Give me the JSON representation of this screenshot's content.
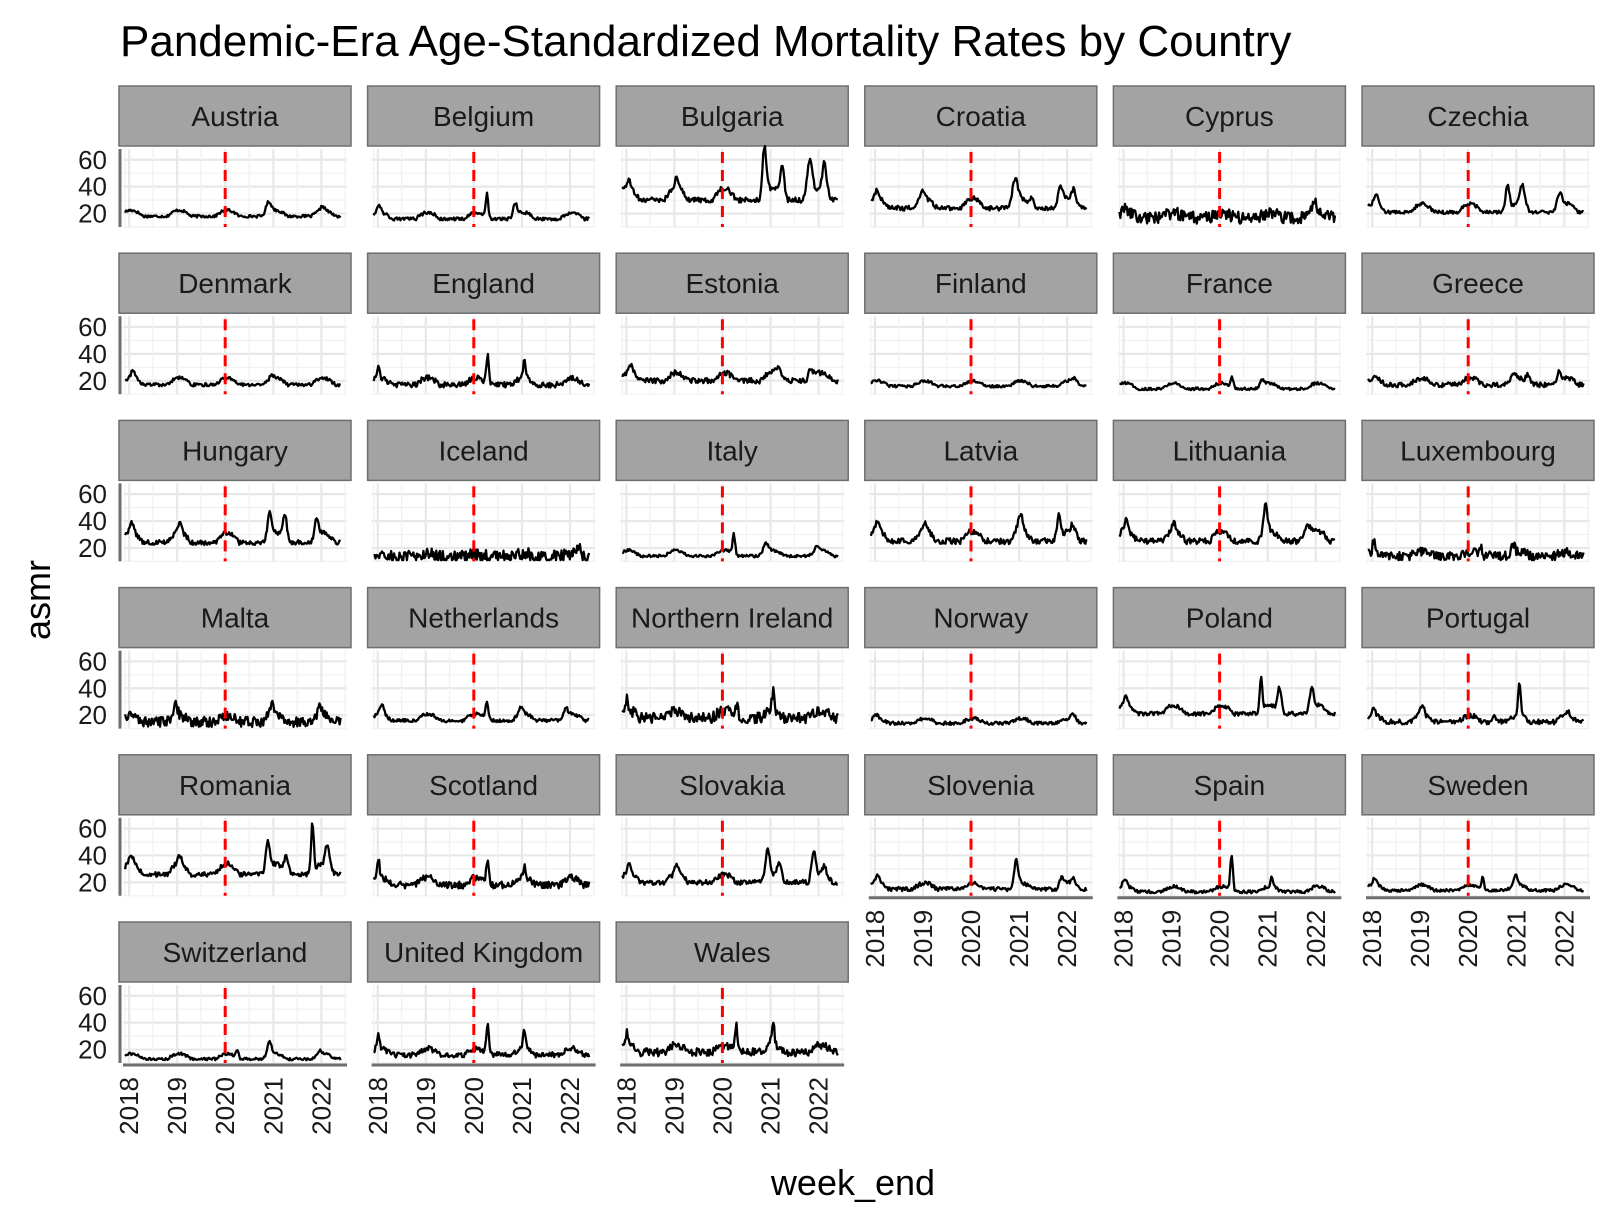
{
  "chart_data": {
    "type": "line",
    "title": "Pandemic-Era Age-Standardized Mortality Rates by Country",
    "xlabel": "week_end",
    "ylabel": "asmr",
    "x_ticks": [
      "2018",
      "2019",
      "2020",
      "2021",
      "2022"
    ],
    "y_ticks": [
      20,
      40,
      60
    ],
    "xlim": [
      "2017-11-15",
      "2022-07-15"
    ],
    "ylim": [
      10,
      68
    ],
    "reference_line": {
      "x": "2020-01-01",
      "color": "#ff0000",
      "style": "dashed"
    },
    "series_color": "#000000",
    "grid": true,
    "facets": [
      {
        "name": "Austria",
        "base": 18,
        "amp": 0.25,
        "noise": 1.0,
        "peaks": [
          [
            "2020-11-25",
            8,
            4
          ],
          [
            "2022-01-10",
            3,
            3
          ]
        ]
      },
      {
        "name": "Belgium",
        "base": 16,
        "amp": 0.3,
        "noise": 1.2,
        "peaks": [
          [
            "2018-01-10",
            6,
            3
          ],
          [
            "2020-04-10",
            18,
            2
          ],
          [
            "2020-11-10",
            10,
            3
          ]
        ]
      },
      {
        "name": "Bulgaria",
        "base": 30,
        "amp": 0.3,
        "noise": 2.0,
        "peaks": [
          [
            "2018-01-15",
            6,
            3
          ],
          [
            "2019-01-20",
            8,
            3
          ],
          [
            "2020-11-15",
            36,
            3
          ],
          [
            "2021-04-01",
            25,
            3
          ],
          [
            "2021-10-25",
            28,
            4
          ],
          [
            "2022-02-15",
            20,
            3
          ]
        ]
      },
      {
        "name": "Croatia",
        "base": 24,
        "amp": 0.3,
        "noise": 1.8,
        "peaks": [
          [
            "2018-01-15",
            6,
            3
          ],
          [
            "2018-12-28",
            6,
            3
          ],
          [
            "2020-12-01",
            17,
            4
          ],
          [
            "2021-04-10",
            6,
            3
          ],
          [
            "2021-11-10",
            13,
            4
          ],
          [
            "2022-02-20",
            8,
            3
          ]
        ]
      },
      {
        "name": "Cyprus",
        "base": 17,
        "amp": 0.2,
        "noise": 4.5,
        "peaks": [
          [
            "2018-01-10",
            6,
            2
          ],
          [
            "2021-12-20",
            9,
            3
          ],
          [
            "2022-04-01",
            7,
            2
          ]
        ]
      },
      {
        "name": "Czechia",
        "base": 21,
        "amp": 0.3,
        "noise": 1.3,
        "peaks": [
          [
            "2018-02-01",
            8,
            3
          ],
          [
            "2020-10-25",
            20,
            3
          ],
          [
            "2021-02-15",
            15,
            4
          ],
          [
            "2021-11-25",
            10,
            4
          ]
        ]
      },
      {
        "name": "Denmark",
        "base": 17,
        "amp": 0.3,
        "noise": 1.2,
        "peaks": [
          [
            "2018-02-01",
            6,
            3
          ],
          [
            "2020-12-20",
            3,
            3
          ]
        ]
      },
      {
        "name": "England",
        "base": 17,
        "amp": 0.3,
        "noise": 2.0,
        "peaks": [
          [
            "2018-01-05",
            8,
            2
          ],
          [
            "2020-04-15",
            22,
            2
          ],
          [
            "2021-01-20",
            14,
            2
          ]
        ]
      },
      {
        "name": "Estonia",
        "base": 20,
        "amp": 0.3,
        "noise": 2.0,
        "peaks": [
          [
            "2018-02-05",
            7,
            3
          ],
          [
            "2021-03-01",
            6,
            4
          ],
          [
            "2021-11-01",
            8,
            3
          ]
        ]
      },
      {
        "name": "Finland",
        "base": 16,
        "amp": 0.25,
        "noise": 1.0,
        "peaks": [
          [
            "2022-03-01",
            3,
            4
          ]
        ]
      },
      {
        "name": "France",
        "base": 14,
        "amp": 0.3,
        "noise": 1.0,
        "peaks": [
          [
            "2020-04-05",
            8,
            2
          ],
          [
            "2020-11-15",
            5,
            3
          ]
        ]
      },
      {
        "name": "Greece",
        "base": 17,
        "amp": 0.3,
        "noise": 1.8,
        "peaks": [
          [
            "2020-12-15",
            5,
            3
          ],
          [
            "2021-04-01",
            6,
            3
          ],
          [
            "2021-11-20",
            7,
            3
          ]
        ]
      },
      {
        "name": "Hungary",
        "base": 24,
        "amp": 0.3,
        "noise": 1.8,
        "peaks": [
          [
            "2018-01-20",
            8,
            3
          ],
          [
            "2019-01-20",
            8,
            3
          ],
          [
            "2020-12-05",
            17,
            3
          ],
          [
            "2021-03-30",
            20,
            3
          ],
          [
            "2021-11-25",
            15,
            3
          ]
        ]
      },
      {
        "name": "Iceland",
        "base": 13,
        "amp": 0.2,
        "noise": 5.0,
        "peaks": [
          [
            "2022-03-15",
            10,
            2
          ]
        ]
      },
      {
        "name": "Italy",
        "base": 14,
        "amp": 0.3,
        "noise": 1.0,
        "peaks": [
          [
            "2020-03-28",
            15,
            2
          ],
          [
            "2020-11-25",
            7,
            4
          ],
          [
            "2021-12-20",
            4,
            3
          ]
        ]
      },
      {
        "name": "Latvia",
        "base": 25,
        "amp": 0.3,
        "noise": 2.2,
        "peaks": [
          [
            "2018-01-20",
            8,
            3
          ],
          [
            "2019-01-20",
            6,
            3
          ],
          [
            "2021-01-10",
            12,
            4
          ],
          [
            "2021-10-30",
            18,
            3
          ],
          [
            "2022-02-15",
            6,
            3
          ]
        ]
      },
      {
        "name": "Lithuania",
        "base": 25,
        "amp": 0.3,
        "noise": 2.2,
        "peaks": [
          [
            "2018-01-20",
            8,
            3
          ],
          [
            "2019-01-20",
            6,
            3
          ],
          [
            "2020-12-15",
            20,
            3
          ],
          [
            "2021-10-30",
            10,
            5
          ]
        ]
      },
      {
        "name": "Luxembourg",
        "base": 14,
        "amp": 0.2,
        "noise": 3.5,
        "peaks": [
          [
            "2018-01-15",
            9,
            2
          ],
          [
            "2020-04-05",
            6,
            2
          ],
          [
            "2020-12-05",
            7,
            3
          ]
        ]
      },
      {
        "name": "Malta",
        "base": 15,
        "amp": 0.3,
        "noise": 3.8,
        "peaks": [
          [
            "2018-12-20",
            8,
            3
          ],
          [
            "2020-12-20",
            8,
            4
          ],
          [
            "2021-12-20",
            7,
            3
          ]
        ]
      },
      {
        "name": "Netherlands",
        "base": 16,
        "amp": 0.3,
        "noise": 1.3,
        "peaks": [
          [
            "2018-02-01",
            8,
            3
          ],
          [
            "2020-04-10",
            14,
            2
          ],
          [
            "2020-12-25",
            6,
            3
          ],
          [
            "2021-12-01",
            6,
            3
          ]
        ]
      },
      {
        "name": "Northern Ireland",
        "base": 18,
        "amp": 0.3,
        "noise": 4.0,
        "peaks": [
          [
            "2018-01-05",
            10,
            2
          ],
          [
            "2020-04-20",
            8,
            2
          ],
          [
            "2021-01-20",
            14,
            2
          ]
        ]
      },
      {
        "name": "Norway",
        "base": 14,
        "amp": 0.25,
        "noise": 1.2,
        "peaks": [
          [
            "2018-01-10",
            3,
            3
          ],
          [
            "2022-02-15",
            4,
            3
          ]
        ]
      },
      {
        "name": "Poland",
        "base": 21,
        "amp": 0.3,
        "noise": 1.5,
        "peaks": [
          [
            "2018-01-20",
            7,
            3
          ],
          [
            "2020-11-10",
            25,
            2
          ],
          [
            "2021-04-01",
            18,
            3
          ],
          [
            "2021-12-01",
            16,
            3
          ]
        ]
      },
      {
        "name": "Portugal",
        "base": 15,
        "amp": 0.3,
        "noise": 1.8,
        "peaks": [
          [
            "2018-01-10",
            6,
            3
          ],
          [
            "2019-01-15",
            8,
            3
          ],
          [
            "2020-07-20",
            4,
            3
          ],
          [
            "2021-01-25",
            25,
            2
          ],
          [
            "2022-01-25",
            4,
            3
          ]
        ]
      },
      {
        "name": "Romania",
        "base": 26,
        "amp": 0.3,
        "noise": 1.8,
        "peaks": [
          [
            "2018-01-15",
            7,
            3
          ],
          [
            "2019-01-20",
            6,
            3
          ],
          [
            "2020-11-20",
            20,
            3
          ],
          [
            "2021-04-10",
            12,
            3
          ],
          [
            "2021-10-25",
            38,
            2
          ],
          [
            "2022-02-15",
            15,
            3
          ]
        ]
      },
      {
        "name": "Scotland",
        "base": 18,
        "amp": 0.3,
        "noise": 2.5,
        "peaks": [
          [
            "2018-01-05",
            14,
            2
          ],
          [
            "2020-04-15",
            18,
            2
          ],
          [
            "2021-01-20",
            8,
            2
          ]
        ]
      },
      {
        "name": "Slovakia",
        "base": 20,
        "amp": 0.3,
        "noise": 1.8,
        "peaks": [
          [
            "2018-01-20",
            7,
            3
          ],
          [
            "2019-01-20",
            7,
            3
          ],
          [
            "2020-12-10",
            20,
            3
          ],
          [
            "2021-03-10",
            12,
            3
          ],
          [
            "2021-11-25",
            20,
            3
          ],
          [
            "2022-02-15",
            7,
            3
          ]
        ]
      },
      {
        "name": "Slovenia",
        "base": 15,
        "amp": 0.3,
        "noise": 1.5,
        "peaks": [
          [
            "2018-01-20",
            6,
            3
          ],
          [
            "2020-12-10",
            18,
            3
          ],
          [
            "2021-11-20",
            6,
            3
          ],
          [
            "2022-02-15",
            5,
            3
          ]
        ]
      },
      {
        "name": "Spain",
        "base": 13,
        "amp": 0.3,
        "noise": 1.2,
        "peaks": [
          [
            "2018-01-10",
            6,
            3
          ],
          [
            "2020-04-01",
            27,
            2
          ],
          [
            "2021-02-01",
            7,
            2
          ]
        ]
      },
      {
        "name": "Sweden",
        "base": 14,
        "amp": 0.3,
        "noise": 1.0,
        "peaks": [
          [
            "2018-01-20",
            5,
            3
          ],
          [
            "2020-04-20",
            10,
            2
          ],
          [
            "2020-12-25",
            8,
            3
          ]
        ]
      },
      {
        "name": "Switzerland",
        "base": 13,
        "amp": 0.3,
        "noise": 1.0,
        "peaks": [
          [
            "2020-04-01",
            6,
            2
          ],
          [
            "2020-12-01",
            11,
            3
          ],
          [
            "2021-12-20",
            3,
            3
          ]
        ]
      },
      {
        "name": "United Kingdom",
        "base": 16,
        "amp": 0.3,
        "noise": 2.0,
        "peaks": [
          [
            "2018-01-05",
            10,
            2
          ],
          [
            "2020-04-15",
            22,
            2
          ],
          [
            "2021-01-20",
            14,
            2
          ]
        ]
      },
      {
        "name": "Wales",
        "base": 18,
        "amp": 0.3,
        "noise": 3.0,
        "peaks": [
          [
            "2018-01-05",
            10,
            2
          ],
          [
            "2020-04-15",
            20,
            2
          ],
          [
            "2021-01-20",
            18,
            2
          ]
        ]
      }
    ]
  }
}
